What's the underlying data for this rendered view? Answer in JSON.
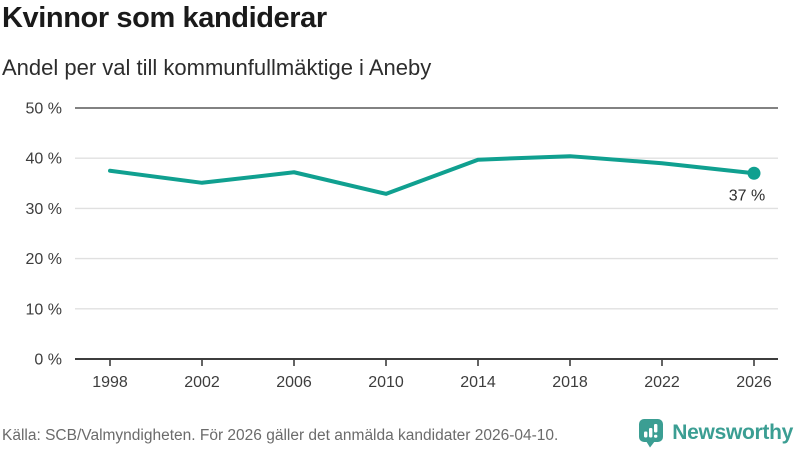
{
  "header": {
    "title": "Kvinnor som kandiderar",
    "subtitle": "Andel per val till kommunfullmäktige i Aneby"
  },
  "chart_data": {
    "type": "line",
    "title": "Kvinnor som kandiderar",
    "subtitle": "Andel per val till kommunfullmäktige i Aneby",
    "x": [
      1998,
      2002,
      2006,
      2010,
      2014,
      2018,
      2022,
      2026
    ],
    "x_tick_labels": [
      "1998",
      "2002",
      "2006",
      "2010",
      "2014",
      "2018",
      "2022",
      "2026"
    ],
    "series": [
      {
        "name": "Kvinnor som kandiderar",
        "values": [
          37.5,
          35.1,
          37.2,
          32.9,
          39.7,
          40.4,
          39.0,
          37.0
        ]
      }
    ],
    "end_point_label": "37 %",
    "xlabel": "",
    "ylabel": "",
    "ylim": [
      0,
      50
    ],
    "y_tick_values": [
      0,
      10,
      20,
      30,
      40,
      50
    ],
    "y_tick_labels": [
      "0 %",
      "10 %",
      "20 %",
      "30 %",
      "40 %",
      "50 %"
    ],
    "grid": "horizontal",
    "legend_position": "none"
  },
  "footer": {
    "source": "Källa: SCB/Valmyndigheten. För 2026 gäller det anmälda kandidater 2026-04-10.",
    "logo_text": "Newsworthy"
  },
  "colors": {
    "line": "#10a090",
    "marker": "#10a090",
    "grid_light": "#e0e0e0",
    "grid_top": "#828282",
    "axis": "#3d3d3d",
    "logo_teal": "#3b9e93"
  }
}
